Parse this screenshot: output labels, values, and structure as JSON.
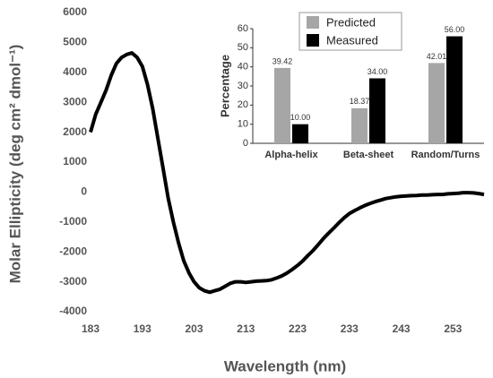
{
  "chart_data": [
    {
      "type": "line",
      "x_label": "Wavelength (nm)",
      "y_label": "Molar Ellipticity (deg cm² dmol⁻¹)",
      "x": [
        183,
        184,
        185,
        186,
        187,
        188,
        189,
        190,
        191,
        192,
        193,
        194,
        195,
        196,
        197,
        198,
        199,
        200,
        201,
        202,
        203,
        204,
        205,
        206,
        207,
        208,
        209,
        210,
        211,
        212,
        213,
        214,
        215,
        216,
        217,
        218,
        219,
        220,
        221,
        222,
        223,
        224,
        225,
        226,
        227,
        228,
        229,
        230,
        231,
        232,
        233,
        234,
        235,
        236,
        237,
        238,
        239,
        240,
        241,
        242,
        243,
        244,
        245,
        246,
        247,
        248,
        249,
        250,
        251,
        252,
        253,
        254,
        255,
        256,
        257,
        258,
        259
      ],
      "values": [
        2000,
        2600,
        3000,
        3400,
        3900,
        4300,
        4500,
        4600,
        4650,
        4500,
        4200,
        3600,
        2800,
        1800,
        800,
        -200,
        -1000,
        -1700,
        -2300,
        -2700,
        -3000,
        -3200,
        -3300,
        -3350,
        -3300,
        -3250,
        -3150,
        -3050,
        -3000,
        -3000,
        -3020,
        -3000,
        -2980,
        -2970,
        -2960,
        -2930,
        -2870,
        -2800,
        -2700,
        -2580,
        -2450,
        -2300,
        -2120,
        -1950,
        -1750,
        -1550,
        -1370,
        -1200,
        -1020,
        -860,
        -720,
        -620,
        -530,
        -450,
        -380,
        -320,
        -270,
        -220,
        -190,
        -160,
        -140,
        -130,
        -120,
        -115,
        -100,
        -100,
        -90,
        -80,
        -80,
        -60,
        -50,
        -40,
        -20,
        -20,
        -30,
        -50,
        -80
      ],
      "color": "#000000",
      "xlim": [
        183,
        259
      ],
      "xticks": [
        183,
        193,
        203,
        213,
        223,
        233,
        243,
        253
      ],
      "ylim": [
        -4000,
        6000
      ],
      "yticks": [
        -4000,
        -3000,
        -2000,
        -1000,
        0,
        1000,
        2000,
        3000,
        4000,
        5000,
        6000
      ]
    },
    {
      "type": "bar",
      "y_label": "Percentage",
      "categories": [
        "Alpha-helix",
        "Beta-sheet",
        "Random/Turns"
      ],
      "series": [
        {
          "name": "Predicted",
          "color": "#a6a6a6",
          "values": [
            39.42,
            18.37,
            42.01
          ],
          "value_labels": [
            "39.42",
            "18.37",
            "42.01"
          ]
        },
        {
          "name": "Measured",
          "color": "#000000",
          "values": [
            10.0,
            34.0,
            56.0
          ],
          "value_labels": [
            "10.00",
            "34.00",
            "56.00"
          ]
        }
      ],
      "ylim": [
        0,
        60
      ],
      "yticks": [
        0,
        10,
        20,
        30,
        40,
        50,
        60
      ],
      "legend": "top"
    }
  ]
}
